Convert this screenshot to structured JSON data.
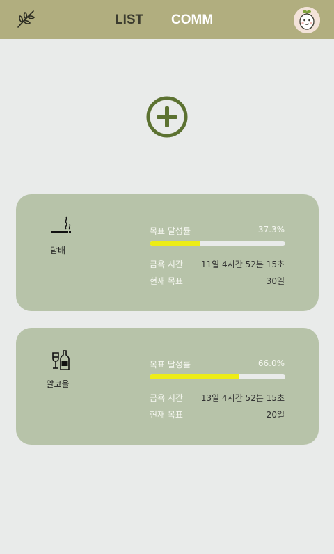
{
  "header": {
    "nav_list": "LIST",
    "nav_comm": "COMM",
    "logo_icon": "leaf-branch-icon",
    "avatar_icon": "sprout-face-avatar",
    "bg_color": "#b1ae7f"
  },
  "add_button": {
    "icon": "plus-circle-icon",
    "color": "#5c7231"
  },
  "habits": [
    {
      "icon": "cigarette-icon",
      "name": "담배",
      "rate_label": "목표 달성률",
      "rate_value": "37.3%",
      "progress": 0.373,
      "time_label": "금욕 시간",
      "time_value": "11일 4시간 52분 15초",
      "goal_label": "현재 목표",
      "goal_value": "30일"
    },
    {
      "icon": "alcohol-bottle-icon",
      "name": "알코올",
      "rate_label": "목표 달성률",
      "rate_value": "66.0%",
      "progress": 0.66,
      "time_label": "금욕 시간",
      "time_value": "13일 4시간 52분 15초",
      "goal_label": "현재 목표",
      "goal_value": "20일"
    }
  ],
  "colors": {
    "card": "#b7c3a9",
    "progress_fill": "#eded16",
    "progress_track": "#e9ebea"
  }
}
